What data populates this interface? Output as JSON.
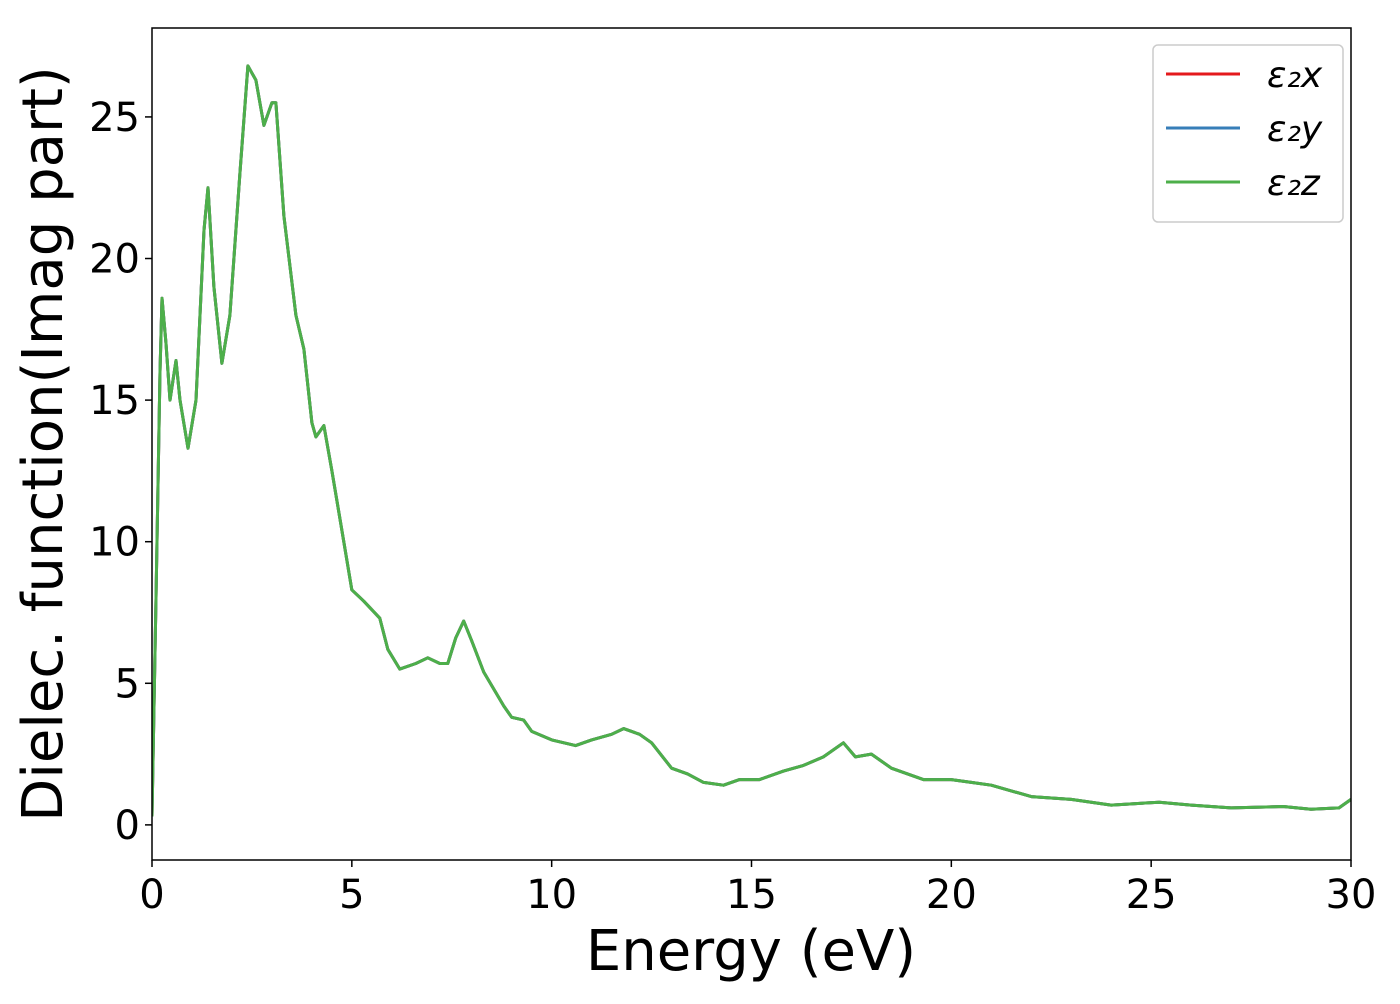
{
  "chart_data": {
    "type": "line",
    "x_label": "Energy (eV)",
    "y_label": "Dielec. function(Imag part)",
    "x": [
      0,
      0.1,
      0.2,
      0.25,
      0.35,
      0.45,
      0.6,
      0.7,
      0.9,
      1.1,
      1.3,
      1.4,
      1.55,
      1.75,
      1.95,
      2.2,
      2.4,
      2.6,
      2.8,
      3.0,
      3.1,
      3.3,
      3.6,
      3.8,
      4.0,
      4.1,
      4.3,
      4.5,
      4.8,
      5.0,
      5.3,
      5.7,
      5.9,
      6.2,
      6.6,
      6.9,
      7.2,
      7.4,
      7.6,
      7.8,
      8.0,
      8.3,
      8.8,
      9.0,
      9.3,
      9.5,
      10,
      10.6,
      11,
      11.5,
      11.8,
      12.2,
      12.5,
      13,
      13.4,
      13.8,
      14.3,
      14.7,
      15.2,
      15.8,
      16.3,
      16.8,
      17.3,
      17.6,
      18,
      18.5,
      19.3,
      20,
      20.5,
      21,
      21.5,
      22,
      23,
      24,
      25.2,
      26,
      27,
      28.3,
      29,
      29.7,
      30
    ],
    "series": [
      {
        "name": "ε₂x",
        "color": "#e41a1c",
        "values": [
          0.3,
          8,
          16,
          18.6,
          17,
          15,
          16.4,
          15,
          13.3,
          15,
          21,
          22.5,
          19,
          16.3,
          18,
          23,
          26.8,
          26.3,
          24.7,
          25.5,
          25.5,
          21.5,
          18,
          16.8,
          14.2,
          13.7,
          14.1,
          12.5,
          10,
          8.3,
          7.9,
          7.3,
          6.2,
          5.5,
          5.7,
          5.9,
          5.7,
          5.7,
          6.6,
          7.2,
          6.5,
          5.4,
          4.2,
          3.8,
          3.7,
          3.3,
          3.0,
          2.8,
          3.0,
          3.2,
          3.4,
          3.2,
          2.9,
          2.0,
          1.8,
          1.5,
          1.4,
          1.6,
          1.6,
          1.9,
          2.1,
          2.4,
          2.9,
          2.4,
          2.5,
          2.0,
          1.6,
          1.6,
          1.5,
          1.4,
          1.2,
          1.0,
          0.9,
          0.7,
          0.8,
          0.7,
          0.6,
          0.65,
          0.55,
          0.6,
          0.9
        ]
      },
      {
        "name": "ε₂y",
        "color": "#377eb8",
        "values": [
          0.3,
          8,
          16,
          18.6,
          17,
          15,
          16.4,
          15,
          13.3,
          15,
          21,
          22.5,
          19,
          16.3,
          18,
          23,
          26.8,
          26.3,
          24.7,
          25.5,
          25.5,
          21.5,
          18,
          16.8,
          14.2,
          13.7,
          14.1,
          12.5,
          10,
          8.3,
          7.9,
          7.3,
          6.2,
          5.5,
          5.7,
          5.9,
          5.7,
          5.7,
          6.6,
          7.2,
          6.5,
          5.4,
          4.2,
          3.8,
          3.7,
          3.3,
          3.0,
          2.8,
          3.0,
          3.2,
          3.4,
          3.2,
          2.9,
          2.0,
          1.8,
          1.5,
          1.4,
          1.6,
          1.6,
          1.9,
          2.1,
          2.4,
          2.9,
          2.4,
          2.5,
          2.0,
          1.6,
          1.6,
          1.5,
          1.4,
          1.2,
          1.0,
          0.9,
          0.7,
          0.8,
          0.7,
          0.6,
          0.65,
          0.55,
          0.6,
          0.9
        ]
      },
      {
        "name": "ε₂z",
        "color": "#4daf4a",
        "values": [
          0.3,
          8,
          16,
          18.6,
          17,
          15,
          16.4,
          15,
          13.3,
          15,
          21,
          22.5,
          19,
          16.3,
          18,
          23,
          26.8,
          26.3,
          24.7,
          25.5,
          25.5,
          21.5,
          18,
          16.8,
          14.2,
          13.7,
          14.1,
          12.5,
          10,
          8.3,
          7.9,
          7.3,
          6.2,
          5.5,
          5.7,
          5.9,
          5.7,
          5.7,
          6.6,
          7.2,
          6.5,
          5.4,
          4.2,
          3.8,
          3.7,
          3.3,
          3.0,
          2.8,
          3.0,
          3.2,
          3.4,
          3.2,
          2.9,
          2.0,
          1.8,
          1.5,
          1.4,
          1.6,
          1.6,
          1.9,
          2.1,
          2.4,
          2.9,
          2.4,
          2.5,
          2.0,
          1.6,
          1.6,
          1.5,
          1.4,
          1.2,
          1.0,
          0.9,
          0.7,
          0.8,
          0.7,
          0.6,
          0.65,
          0.55,
          0.6,
          0.9
        ]
      }
    ],
    "xlim": [
      0,
      30
    ],
    "xticks": [
      0,
      5,
      10,
      15,
      20,
      25,
      30
    ],
    "ylim": [
      -1.24,
      28.14
    ],
    "yticks": [
      0,
      5,
      10,
      15,
      20,
      25
    ],
    "legend": "upper right"
  }
}
